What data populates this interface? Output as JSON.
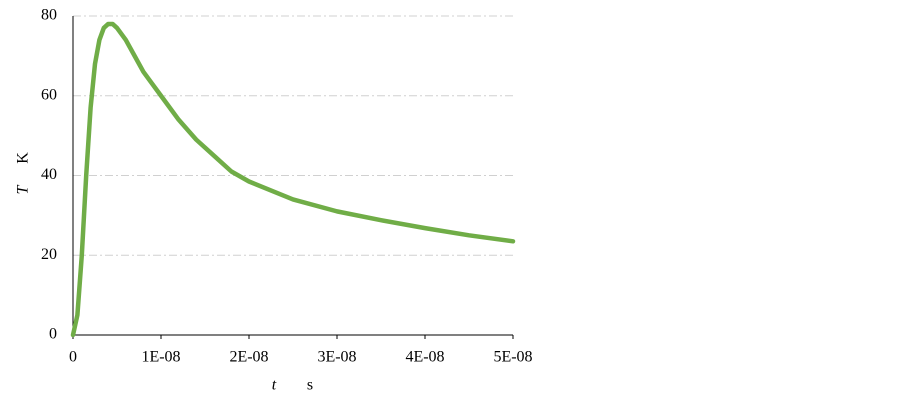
{
  "chart_data": {
    "type": "line",
    "xlabel": {
      "symbol": "t",
      "unit": "s"
    },
    "ylabel": {
      "symbol": "T",
      "unit": "K"
    },
    "x": [
      0,
      5e-10,
      1e-09,
      1.5e-09,
      2e-09,
      2.5e-09,
      3e-09,
      3.5e-09,
      4e-09,
      4.5e-09,
      5e-09,
      6e-09,
      7e-09,
      8e-09,
      9e-09,
      1e-08,
      1.2e-08,
      1.4e-08,
      1.6e-08,
      1.8e-08,
      2e-08,
      2.5e-08,
      3e-08,
      3.5e-08,
      4e-08,
      4.5e-08,
      5e-08
    ],
    "series": [
      {
        "color": "#70ad47",
        "values": [
          0,
          5,
          20,
          40,
          57,
          68,
          74,
          77,
          78,
          78,
          77,
          74,
          70,
          66,
          63,
          60,
          54,
          49,
          45,
          41,
          38.5,
          34,
          31,
          28.8,
          26.8,
          25,
          23.5
        ]
      }
    ],
    "xlim": [
      0,
      5e-08
    ],
    "xticks": [
      0,
      {
        "value": 1e-08,
        "label": "1E-08"
      },
      {
        "value": 2e-08,
        "label": "2E-08"
      },
      {
        "value": 3e-08,
        "label": "3E-08"
      },
      {
        "value": 4e-08,
        "label": "4E-08"
      },
      {
        "value": 5e-08,
        "label": "5E-08"
      }
    ],
    "ylim": [
      0,
      80
    ],
    "yticks": [
      0,
      20,
      40,
      60,
      80
    ],
    "grid": true
  }
}
